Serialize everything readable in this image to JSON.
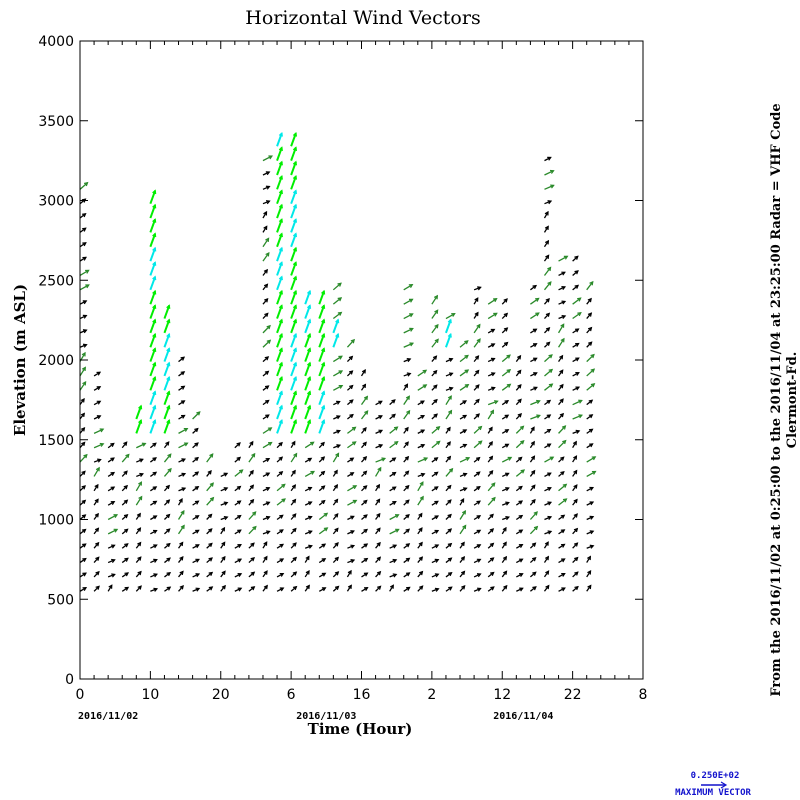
{
  "chart_data": {
    "type": "vector-field",
    "title": "Horizontal Wind Vectors",
    "xlabel": "Time (Hour)",
    "ylabel": "Elevation (m ASL)",
    "x_tick_labels": [
      "0",
      "10",
      "20",
      "6",
      "16",
      "2",
      "12",
      "22",
      "8"
    ],
    "x_hours": [
      0,
      10,
      20,
      30,
      40,
      50,
      60,
      70,
      80
    ],
    "date_labels": [
      {
        "text": "2016/11/02",
        "hour": 4
      },
      {
        "text": "2016/11/03",
        "hour": 35
      },
      {
        "text": "2016/11/04",
        "hour": 63
      }
    ],
    "y_ticks": [
      0,
      500,
      1000,
      1500,
      2000,
      2500,
      3000,
      3500,
      4000
    ],
    "xlim": [
      0,
      80
    ],
    "ylim": [
      0,
      4000
    ],
    "grid": false,
    "side_note_lines": [
      "From the 2016/11/02 at  0:25:00 to the 2016/11/04 at 23:25:00 Radar = VHF Code",
      "Clermont-Fd."
    ],
    "key": {
      "value": "0.250E+02",
      "label": "MAXIMUM VECTOR"
    },
    "speed_colors": {
      "weak": "#000000",
      "moderate": "#2a8a2a",
      "strong": "#00ee00",
      "max": "#00e8e8"
    },
    "series": [
      {
        "x_hours": [
          0,
          2,
          4,
          6,
          8,
          10,
          12,
          14,
          16,
          18,
          20,
          22,
          24,
          26,
          28,
          30,
          32,
          34,
          36,
          38,
          40,
          42,
          44,
          46,
          48,
          50,
          52,
          54,
          56,
          58,
          60,
          62,
          64,
          66,
          68,
          70,
          72
        ],
        "top_m": [
          3100,
          1900,
          1500,
          1500,
          1700,
          3000,
          2300,
          2000,
          1700,
          1400,
          1300,
          1500,
          1500,
          3300,
          3350,
          3350,
          2400,
          2400,
          2500,
          2100,
          1900,
          1800,
          1800,
          2500,
          1900,
          2400,
          2300,
          2100,
          2500,
          2400,
          2400,
          2000,
          2500,
          3250,
          2700,
          2700,
          2500
        ]
      }
    ]
  }
}
